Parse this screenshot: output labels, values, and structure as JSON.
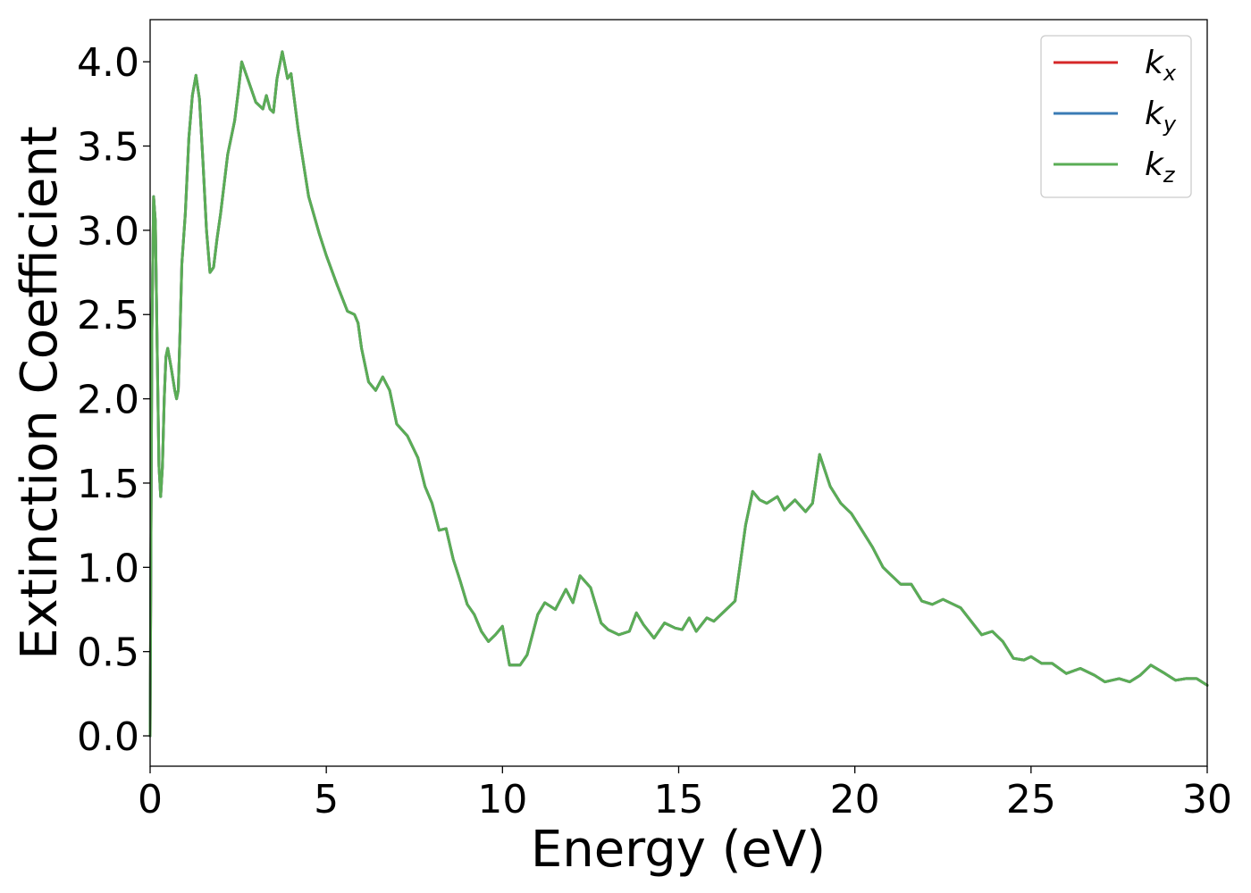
{
  "chart_data": {
    "type": "line",
    "title": "",
    "xlabel": "Energy (eV)",
    "ylabel": "Extinction Coefficient",
    "xlim": [
      0,
      30
    ],
    "ylim": [
      -0.18,
      4.25
    ],
    "xticks": [
      0,
      5,
      10,
      15,
      20,
      25,
      30
    ],
    "xtick_labels": [
      "0",
      "5",
      "10",
      "15",
      "20",
      "25",
      "30"
    ],
    "yticks": [
      0.0,
      0.5,
      1.0,
      1.5,
      2.0,
      2.5,
      3.0,
      3.5,
      4.0
    ],
    "ytick_labels": [
      "0.0",
      "0.5",
      "1.0",
      "1.5",
      "2.0",
      "2.5",
      "3.0",
      "3.5",
      "4.0"
    ],
    "grid": false,
    "legend_position": "top-right",
    "x": [
      0.0,
      0.05,
      0.1,
      0.15,
      0.2,
      0.25,
      0.3,
      0.35,
      0.4,
      0.45,
      0.5,
      0.6,
      0.7,
      0.75,
      0.8,
      0.85,
      0.9,
      1.0,
      1.1,
      1.2,
      1.3,
      1.4,
      1.5,
      1.6,
      1.7,
      1.8,
      1.9,
      2.0,
      2.2,
      2.4,
      2.5,
      2.6,
      2.8,
      3.0,
      3.2,
      3.3,
      3.4,
      3.5,
      3.6,
      3.75,
      3.9,
      4.0,
      4.2,
      4.5,
      4.8,
      5.0,
      5.3,
      5.6,
      5.8,
      5.9,
      6.0,
      6.2,
      6.4,
      6.6,
      6.8,
      7.0,
      7.3,
      7.6,
      7.8,
      8.0,
      8.2,
      8.4,
      8.6,
      8.8,
      9.0,
      9.2,
      9.4,
      9.6,
      9.8,
      10.0,
      10.2,
      10.5,
      10.7,
      11.0,
      11.2,
      11.5,
      11.8,
      12.0,
      12.2,
      12.5,
      12.8,
      13.0,
      13.3,
      13.6,
      13.8,
      14.0,
      14.3,
      14.6,
      14.9,
      15.1,
      15.3,
      15.5,
      15.8,
      16.0,
      16.3,
      16.6,
      16.9,
      17.1,
      17.3,
      17.5,
      17.8,
      18.0,
      18.3,
      18.6,
      18.8,
      19.0,
      19.3,
      19.6,
      19.9,
      20.2,
      20.5,
      20.8,
      21.0,
      21.3,
      21.6,
      21.9,
      22.2,
      22.5,
      22.8,
      23.0,
      23.3,
      23.6,
      23.9,
      24.2,
      24.5,
      24.8,
      25.0,
      25.3,
      25.6,
      26.0,
      26.4,
      26.8,
      27.1,
      27.5,
      27.8,
      28.1,
      28.4,
      28.8,
      29.1,
      29.4,
      29.7,
      30.0
    ],
    "series": [
      {
        "name": "k_x",
        "label_base": "k",
        "label_sub": "x",
        "color": "#d62728",
        "values": [
          0.0,
          2.4,
          3.2,
          3.05,
          2.3,
          1.6,
          1.42,
          1.6,
          2.0,
          2.25,
          2.3,
          2.18,
          2.05,
          2.0,
          2.05,
          2.4,
          2.8,
          3.1,
          3.55,
          3.8,
          3.92,
          3.78,
          3.4,
          3.0,
          2.75,
          2.78,
          2.95,
          3.1,
          3.45,
          3.65,
          3.82,
          4.0,
          3.88,
          3.76,
          3.72,
          3.8,
          3.72,
          3.7,
          3.9,
          4.06,
          3.9,
          3.93,
          3.6,
          3.2,
          2.98,
          2.85,
          2.68,
          2.52,
          2.5,
          2.45,
          2.3,
          2.1,
          2.05,
          2.13,
          2.05,
          1.85,
          1.78,
          1.65,
          1.48,
          1.38,
          1.22,
          1.23,
          1.05,
          0.92,
          0.78,
          0.72,
          0.62,
          0.56,
          0.6,
          0.65,
          0.42,
          0.42,
          0.48,
          0.72,
          0.79,
          0.75,
          0.87,
          0.79,
          0.95,
          0.88,
          0.67,
          0.63,
          0.6,
          0.62,
          0.73,
          0.66,
          0.58,
          0.67,
          0.64,
          0.63,
          0.7,
          0.62,
          0.7,
          0.68,
          0.74,
          0.8,
          1.25,
          1.45,
          1.4,
          1.38,
          1.42,
          1.34,
          1.4,
          1.33,
          1.38,
          1.67,
          1.48,
          1.38,
          1.32,
          1.22,
          1.12,
          1.0,
          0.96,
          0.9,
          0.9,
          0.8,
          0.78,
          0.81,
          0.78,
          0.76,
          0.68,
          0.6,
          0.62,
          0.56,
          0.46,
          0.45,
          0.47,
          0.43,
          0.43,
          0.37,
          0.4,
          0.36,
          0.32,
          0.34,
          0.32,
          0.36,
          0.42,
          0.37,
          0.33,
          0.34,
          0.34,
          0.3
        ]
      },
      {
        "name": "k_y",
        "label_base": "k",
        "label_sub": "y",
        "color": "#3a7bb5",
        "values": [
          0.0,
          2.4,
          3.2,
          3.05,
          2.3,
          1.6,
          1.42,
          1.6,
          2.0,
          2.25,
          2.3,
          2.18,
          2.05,
          2.0,
          2.05,
          2.4,
          2.8,
          3.1,
          3.55,
          3.8,
          3.92,
          3.78,
          3.4,
          3.0,
          2.75,
          2.78,
          2.95,
          3.1,
          3.45,
          3.65,
          3.82,
          4.0,
          3.88,
          3.76,
          3.72,
          3.8,
          3.72,
          3.7,
          3.9,
          4.06,
          3.9,
          3.93,
          3.6,
          3.2,
          2.98,
          2.85,
          2.68,
          2.52,
          2.5,
          2.45,
          2.3,
          2.1,
          2.05,
          2.13,
          2.05,
          1.85,
          1.78,
          1.65,
          1.48,
          1.38,
          1.22,
          1.23,
          1.05,
          0.92,
          0.78,
          0.72,
          0.62,
          0.56,
          0.6,
          0.65,
          0.42,
          0.42,
          0.48,
          0.72,
          0.79,
          0.75,
          0.87,
          0.79,
          0.95,
          0.88,
          0.67,
          0.63,
          0.6,
          0.62,
          0.73,
          0.66,
          0.58,
          0.67,
          0.64,
          0.63,
          0.7,
          0.62,
          0.7,
          0.68,
          0.74,
          0.8,
          1.25,
          1.45,
          1.4,
          1.38,
          1.42,
          1.34,
          1.4,
          1.33,
          1.38,
          1.67,
          1.48,
          1.38,
          1.32,
          1.22,
          1.12,
          1.0,
          0.96,
          0.9,
          0.9,
          0.8,
          0.78,
          0.81,
          0.78,
          0.76,
          0.68,
          0.6,
          0.62,
          0.56,
          0.46,
          0.45,
          0.47,
          0.43,
          0.43,
          0.37,
          0.4,
          0.36,
          0.32,
          0.34,
          0.32,
          0.36,
          0.42,
          0.37,
          0.33,
          0.34,
          0.34,
          0.3
        ]
      },
      {
        "name": "k_z",
        "label_base": "k",
        "label_sub": "z",
        "color": "#5aad55",
        "values": [
          0.0,
          2.4,
          3.2,
          3.05,
          2.3,
          1.6,
          1.42,
          1.6,
          2.0,
          2.25,
          2.3,
          2.18,
          2.05,
          2.0,
          2.05,
          2.4,
          2.8,
          3.1,
          3.55,
          3.8,
          3.92,
          3.78,
          3.4,
          3.0,
          2.75,
          2.78,
          2.95,
          3.1,
          3.45,
          3.65,
          3.82,
          4.0,
          3.88,
          3.76,
          3.72,
          3.8,
          3.72,
          3.7,
          3.9,
          4.06,
          3.9,
          3.93,
          3.6,
          3.2,
          2.98,
          2.85,
          2.68,
          2.52,
          2.5,
          2.45,
          2.3,
          2.1,
          2.05,
          2.13,
          2.05,
          1.85,
          1.78,
          1.65,
          1.48,
          1.38,
          1.22,
          1.23,
          1.05,
          0.92,
          0.78,
          0.72,
          0.62,
          0.56,
          0.6,
          0.65,
          0.42,
          0.42,
          0.48,
          0.72,
          0.79,
          0.75,
          0.87,
          0.79,
          0.95,
          0.88,
          0.67,
          0.63,
          0.6,
          0.62,
          0.73,
          0.66,
          0.58,
          0.67,
          0.64,
          0.63,
          0.7,
          0.62,
          0.7,
          0.68,
          0.74,
          0.8,
          1.25,
          1.45,
          1.4,
          1.38,
          1.42,
          1.34,
          1.4,
          1.33,
          1.38,
          1.67,
          1.48,
          1.38,
          1.32,
          1.22,
          1.12,
          1.0,
          0.96,
          0.9,
          0.9,
          0.8,
          0.78,
          0.81,
          0.78,
          0.76,
          0.68,
          0.6,
          0.62,
          0.56,
          0.46,
          0.45,
          0.47,
          0.43,
          0.43,
          0.37,
          0.4,
          0.36,
          0.32,
          0.34,
          0.32,
          0.36,
          0.42,
          0.37,
          0.33,
          0.34,
          0.34,
          0.3
        ]
      }
    ]
  }
}
